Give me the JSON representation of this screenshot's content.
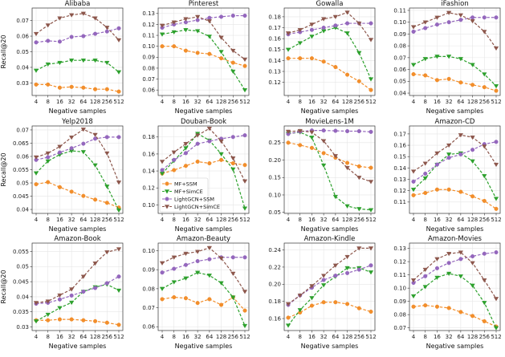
{
  "figure": {
    "xlabel": "Negative samples",
    "ylabel": "Recall@20"
  },
  "legend": {
    "placement": "inside Douban-Book panel, lower-left",
    "entries": [
      {
        "name": "MF+SSM",
        "color": "#f28e2b",
        "marker": "circle"
      },
      {
        "name": "MF+SimCE",
        "color": "#2ca02c",
        "marker": "triangle-down"
      },
      {
        "name": "LightGCN+SSM",
        "color": "#9467bd",
        "marker": "circle"
      },
      {
        "name": "LightGCN+SimCE",
        "color": "#8c564b",
        "marker": "triangle-down"
      }
    ]
  },
  "chart_data": [
    {
      "type": "line",
      "title": "Alibaba",
      "xlabel": "Negative samples",
      "ylabel": "Recall@20",
      "categories": [
        "4",
        "8",
        "16",
        "32",
        "64",
        "128",
        "256",
        "512"
      ],
      "ylim": [
        0.022,
        0.078
      ],
      "yticks": [
        0.03,
        0.04,
        0.05,
        0.06,
        0.07
      ],
      "series": [
        {
          "name": "MF+SSM",
          "values": [
            0.029,
            0.029,
            0.027,
            0.0275,
            0.027,
            0.026,
            0.026,
            0.0245
          ]
        },
        {
          "name": "MF+SimCE",
          "values": [
            0.038,
            0.042,
            0.043,
            0.0445,
            0.0445,
            0.0445,
            0.043,
            0.037
          ]
        },
        {
          "name": "LightGCN+SSM",
          "values": [
            0.056,
            0.057,
            0.0565,
            0.0595,
            0.06,
            0.0615,
            0.063,
            0.065
          ]
        },
        {
          "name": "LightGCN+SimCE",
          "values": [
            0.0615,
            0.067,
            0.0715,
            0.0735,
            0.0745,
            0.0715,
            0.0655,
            0.0575
          ]
        }
      ]
    },
    {
      "type": "line",
      "title": "Pinterest",
      "xlabel": "Negative samples",
      "ylabel": "",
      "categories": [
        "4",
        "8",
        "16",
        "32",
        "64",
        "128",
        "256",
        "512"
      ],
      "ylim": [
        0.055,
        0.135
      ],
      "yticks": [
        0.06,
        0.07,
        0.08,
        0.09,
        0.1,
        0.11,
        0.12,
        0.13
      ],
      "series": [
        {
          "name": "MF+SSM",
          "values": [
            0.1,
            0.1,
            0.096,
            0.094,
            0.093,
            0.089,
            0.085,
            0.082
          ]
        },
        {
          "name": "MF+SimCE",
          "values": [
            0.111,
            0.113,
            0.115,
            0.114,
            0.109,
            0.095,
            0.077,
            0.06
          ]
        },
        {
          "name": "LightGCN+SSM",
          "values": [
            0.117,
            0.12,
            0.122,
            0.124,
            0.126,
            0.127,
            0.128,
            0.128
          ]
        },
        {
          "name": "LightGCN+SimCE",
          "values": [
            0.119,
            0.122,
            0.125,
            0.127,
            0.123,
            0.108,
            0.096,
            0.088
          ]
        }
      ]
    },
    {
      "type": "line",
      "title": "Gowalla",
      "xlabel": "Negative samples",
      "ylabel": "",
      "categories": [
        "4",
        "8",
        "16",
        "32",
        "64",
        "128",
        "256",
        "512"
      ],
      "ylim": [
        0.108,
        0.188
      ],
      "yticks": [
        0.12,
        0.13,
        0.14,
        0.15,
        0.16,
        0.17,
        0.18
      ],
      "series": [
        {
          "name": "MF+SSM",
          "values": [
            0.142,
            0.142,
            0.142,
            0.139,
            0.134,
            0.127,
            0.121,
            0.113
          ]
        },
        {
          "name": "MF+SimCE",
          "values": [
            0.15,
            0.156,
            0.162,
            0.167,
            0.17,
            0.165,
            0.147,
            0.123
          ]
        },
        {
          "name": "LightGCN+SSM",
          "values": [
            0.164,
            0.166,
            0.168,
            0.17,
            0.172,
            0.174,
            0.174,
            0.174
          ]
        },
        {
          "name": "LightGCN+SimCE",
          "values": [
            0.165,
            0.168,
            0.173,
            0.178,
            0.18,
            0.184,
            0.174,
            0.159
          ]
        }
      ]
    },
    {
      "type": "line",
      "title": "iFashion",
      "xlabel": "Negative samples",
      "ylabel": "",
      "categories": [
        "4",
        "8",
        "16",
        "32",
        "64",
        "128",
        "256",
        "512"
      ],
      "ylim": [
        0.038,
        0.112
      ],
      "yticks": [
        0.04,
        0.05,
        0.06,
        0.07,
        0.08,
        0.09,
        0.1,
        0.11
      ],
      "series": [
        {
          "name": "MF+SSM",
          "values": [
            0.056,
            0.055,
            0.051,
            0.052,
            0.049,
            0.047,
            0.045,
            0.042
          ]
        },
        {
          "name": "MF+SimCE",
          "values": [
            0.064,
            0.069,
            0.071,
            0.071,
            0.069,
            0.064,
            0.056,
            0.046
          ]
        },
        {
          "name": "LightGCN+SSM",
          "values": [
            0.092,
            0.095,
            0.098,
            0.1,
            0.102,
            0.104,
            0.104,
            0.104
          ]
        },
        {
          "name": "LightGCN+SimCE",
          "values": [
            0.096,
            0.1,
            0.104,
            0.108,
            0.106,
            0.101,
            0.092,
            0.078
          ]
        }
      ]
    },
    {
      "type": "line",
      "title": "Yelp2018",
      "xlabel": "Negative samples",
      "ylabel": "Recall@20",
      "categories": [
        "4",
        "8",
        "16",
        "32",
        "64",
        "128",
        "256",
        "512"
      ],
      "ylim": [
        0.0385,
        0.0715
      ],
      "yticks": [
        0.04,
        0.045,
        0.05,
        0.055,
        0.06,
        0.065,
        0.07
      ],
      "series": [
        {
          "name": "MF+SSM",
          "values": [
            0.0495,
            0.0503,
            0.0484,
            0.0467,
            0.0451,
            0.0437,
            0.0425,
            0.0407
          ]
        },
        {
          "name": "MF+SimCE",
          "values": [
            0.0537,
            0.0582,
            0.0607,
            0.0621,
            0.0617,
            0.0567,
            0.0487,
            0.0397
          ]
        },
        {
          "name": "LightGCN+SSM",
          "values": [
            0.0587,
            0.0597,
            0.0615,
            0.0631,
            0.0648,
            0.0667,
            0.0673,
            0.0673
          ]
        },
        {
          "name": "LightGCN+SimCE",
          "values": [
            0.0597,
            0.0612,
            0.0637,
            0.0672,
            0.0702,
            0.0682,
            0.0612,
            0.0502
          ]
        }
      ]
    },
    {
      "type": "line",
      "title": "Douban-Book",
      "xlabel": "Negative samples",
      "ylabel": "",
      "categories": [
        "4",
        "8",
        "16",
        "32",
        "64",
        "128",
        "256",
        "512"
      ],
      "ylim": [
        0.09,
        0.193
      ],
      "yticks": [
        0.1,
        0.12,
        0.14,
        0.16,
        0.18
      ],
      "series": [
        {
          "name": "MF+SSM",
          "values": [
            0.137,
            0.141,
            0.146,
            0.151,
            0.149,
            0.153,
            0.149,
            0.147
          ]
        },
        {
          "name": "MF+SimCE",
          "values": [
            0.137,
            0.152,
            0.167,
            0.184,
            0.176,
            0.16,
            0.142,
            0.096
          ]
        },
        {
          "name": "LightGCN+SSM",
          "values": [
            0.141,
            0.153,
            0.161,
            0.172,
            0.175,
            0.178,
            0.18,
            0.182
          ]
        },
        {
          "name": "LightGCN+SimCE",
          "values": [
            0.151,
            0.162,
            0.172,
            0.182,
            0.19,
            0.175,
            0.155,
            0.128
          ]
        }
      ]
    },
    {
      "type": "line",
      "title": "MovieLens-1M",
      "xlabel": "Negative samples",
      "ylabel": "",
      "categories": [
        "4",
        "8",
        "16",
        "32",
        "64",
        "128",
        "256",
        "512"
      ],
      "ylim": [
        0.047,
        0.298
      ],
      "yticks": [
        0.05,
        0.1,
        0.15,
        0.2,
        0.25
      ],
      "series": [
        {
          "name": "MF+SSM",
          "values": [
            0.25,
            0.243,
            0.235,
            0.22,
            0.207,
            0.192,
            0.182,
            0.178
          ]
        },
        {
          "name": "MF+SimCE",
          "values": [
            0.276,
            0.28,
            0.265,
            0.185,
            0.095,
            0.068,
            0.06,
            0.057
          ]
        },
        {
          "name": "LightGCN+SSM",
          "values": [
            0.275,
            0.282,
            0.285,
            0.285,
            0.284,
            0.283,
            0.283,
            0.281
          ]
        },
        {
          "name": "LightGCN+SimCE",
          "values": [
            0.282,
            0.284,
            0.28,
            0.255,
            0.212,
            0.178,
            0.15,
            0.138
          ]
        }
      ]
    },
    {
      "type": "line",
      "title": "Amazon-CD",
      "xlabel": "Negative samples",
      "ylabel": "",
      "categories": [
        "4",
        "8",
        "16",
        "32",
        "64",
        "128",
        "256",
        "512"
      ],
      "ylim": [
        0.1,
        0.177
      ],
      "yticks": [
        0.11,
        0.12,
        0.13,
        0.14,
        0.15,
        0.16,
        0.17
      ],
      "series": [
        {
          "name": "MF+SSM",
          "values": [
            0.116,
            0.118,
            0.121,
            0.121,
            0.119,
            0.115,
            0.111,
            0.104
          ]
        },
        {
          "name": "MF+SimCE",
          "values": [
            0.121,
            0.131,
            0.143,
            0.152,
            0.153,
            0.146,
            0.133,
            0.113
          ]
        },
        {
          "name": "LightGCN+SSM",
          "values": [
            0.128,
            0.135,
            0.143,
            0.149,
            0.152,
            0.156,
            0.161,
            0.163
          ]
        },
        {
          "name": "LightGCN+SimCE",
          "values": [
            0.137,
            0.144,
            0.153,
            0.16,
            0.169,
            0.167,
            0.159,
            0.143
          ]
        }
      ]
    },
    {
      "type": "line",
      "title": "Amazon-Book",
      "xlabel": "Negative samples",
      "ylabel": "Recall@20",
      "categories": [
        "4",
        "8",
        "16",
        "32",
        "64",
        "128",
        "256",
        "512"
      ],
      "ylim": [
        0.0288,
        0.0578
      ],
      "yticks": [
        0.03,
        0.035,
        0.04,
        0.045,
        0.05,
        0.055
      ],
      "series": [
        {
          "name": "MF+SSM",
          "values": [
            0.0322,
            0.0322,
            0.0325,
            0.0325,
            0.0322,
            0.0319,
            0.0314,
            0.0307
          ]
        },
        {
          "name": "MF+SimCE",
          "values": [
            0.0319,
            0.0341,
            0.0363,
            0.0381,
            0.0417,
            0.0432,
            0.0441,
            0.0421
          ]
        },
        {
          "name": "LightGCN+SSM",
          "values": [
            0.0377,
            0.038,
            0.0391,
            0.0404,
            0.0417,
            0.0429,
            0.0445,
            0.0467
          ]
        },
        {
          "name": "LightGCN+SimCE",
          "values": [
            0.038,
            0.0385,
            0.0405,
            0.0425,
            0.0467,
            0.0511,
            0.0548,
            0.0558
          ]
        }
      ]
    },
    {
      "type": "line",
      "title": "Amazon-Beauty",
      "xlabel": "Negative samples",
      "ylabel": "",
      "categories": [
        "4",
        "8",
        "16",
        "32",
        "64",
        "128",
        "256",
        "512"
      ],
      "ylim": [
        0.058,
        0.104
      ],
      "yticks": [
        0.06,
        0.07,
        0.08,
        0.09,
        0.1
      ],
      "series": [
        {
          "name": "MF+SSM",
          "values": [
            0.0745,
            0.0755,
            0.075,
            0.0725,
            0.0745,
            0.0715,
            0.0755,
            0.0685
          ]
        },
        {
          "name": "MF+SimCE",
          "values": [
            0.08,
            0.0835,
            0.0855,
            0.0885,
            0.087,
            0.083,
            0.0755,
            0.0605
          ]
        },
        {
          "name": "LightGCN+SSM",
          "values": [
            0.0885,
            0.0905,
            0.0925,
            0.0945,
            0.0955,
            0.0965,
            0.0965,
            0.0965
          ]
        },
        {
          "name": "LightGCN+SimCE",
          "values": [
            0.0935,
            0.0965,
            0.0985,
            0.0995,
            0.1015,
            0.096,
            0.088,
            0.0785
          ]
        }
      ]
    },
    {
      "type": "line",
      "title": "Amazon-Kindle",
      "xlabel": "Negative samples",
      "ylabel": "",
      "categories": [
        "4",
        "8",
        "16",
        "32",
        "64",
        "128",
        "256",
        "512"
      ],
      "ylim": [
        0.146,
        0.248
      ],
      "yticks": [
        0.16,
        0.18,
        0.2,
        0.22,
        0.24
      ],
      "series": [
        {
          "name": "MF+SSM",
          "values": [
            0.161,
            0.167,
            0.175,
            0.179,
            0.179,
            0.177,
            0.172,
            0.168
          ]
        },
        {
          "name": "MF+SimCE",
          "values": [
            0.152,
            0.17,
            0.184,
            0.199,
            0.209,
            0.219,
            0.219,
            0.214
          ]
        },
        {
          "name": "LightGCN+SSM",
          "values": [
            0.176,
            0.187,
            0.196,
            0.205,
            0.21,
            0.213,
            0.217,
            0.222
          ]
        },
        {
          "name": "LightGCN+SimCE",
          "values": [
            0.177,
            0.187,
            0.198,
            0.21,
            0.222,
            0.232,
            0.242,
            0.242
          ]
        }
      ]
    },
    {
      "type": "line",
      "title": "Amazon-Movies",
      "xlabel": "Negative samples",
      "ylabel": "",
      "categories": [
        "4",
        "8",
        "16",
        "32",
        "64",
        "128",
        "256",
        "512"
      ],
      "ylim": [
        0.068,
        0.134
      ],
      "yticks": [
        0.07,
        0.08,
        0.09,
        0.1,
        0.11,
        0.12,
        0.13
      ],
      "series": [
        {
          "name": "MF+SSM",
          "values": [
            0.086,
            0.087,
            0.086,
            0.085,
            0.082,
            0.079,
            0.075,
            0.071
          ]
        },
        {
          "name": "MF+SimCE",
          "values": [
            0.094,
            0.101,
            0.108,
            0.111,
            0.109,
            0.102,
            0.089,
            0.07
          ]
        },
        {
          "name": "LightGCN+SSM",
          "values": [
            0.104,
            0.109,
            0.115,
            0.119,
            0.122,
            0.124,
            0.126,
            0.127
          ]
        },
        {
          "name": "LightGCN+SimCE",
          "values": [
            0.106,
            0.114,
            0.122,
            0.126,
            0.127,
            0.119,
            0.106,
            0.092
          ]
        }
      ]
    }
  ]
}
